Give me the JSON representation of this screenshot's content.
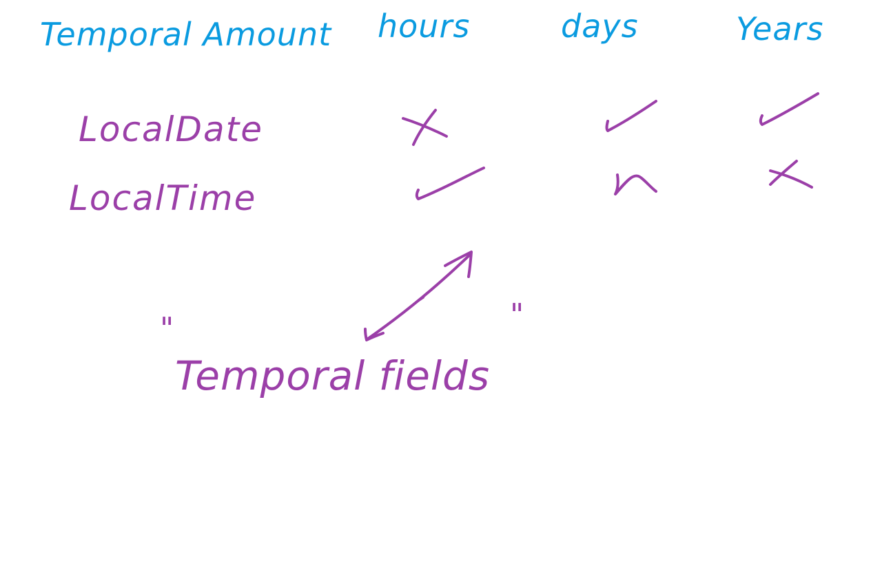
{
  "colors": {
    "header": "#0a9be0",
    "body": "#9b3fa8"
  },
  "header": {
    "label": "Temporal Amount",
    "columns": [
      "hours",
      "days",
      "Years"
    ]
  },
  "rows": [
    {
      "label": "LocalDate",
      "marks": [
        "cross",
        "check",
        "check"
      ]
    },
    {
      "label": "LocalTime",
      "marks": [
        "check",
        "cross",
        "cross"
      ]
    }
  ],
  "note": {
    "text": "Temporal fields",
    "open_quote": "\"",
    "close_quote": "\"",
    "arrow": "double-headed"
  }
}
